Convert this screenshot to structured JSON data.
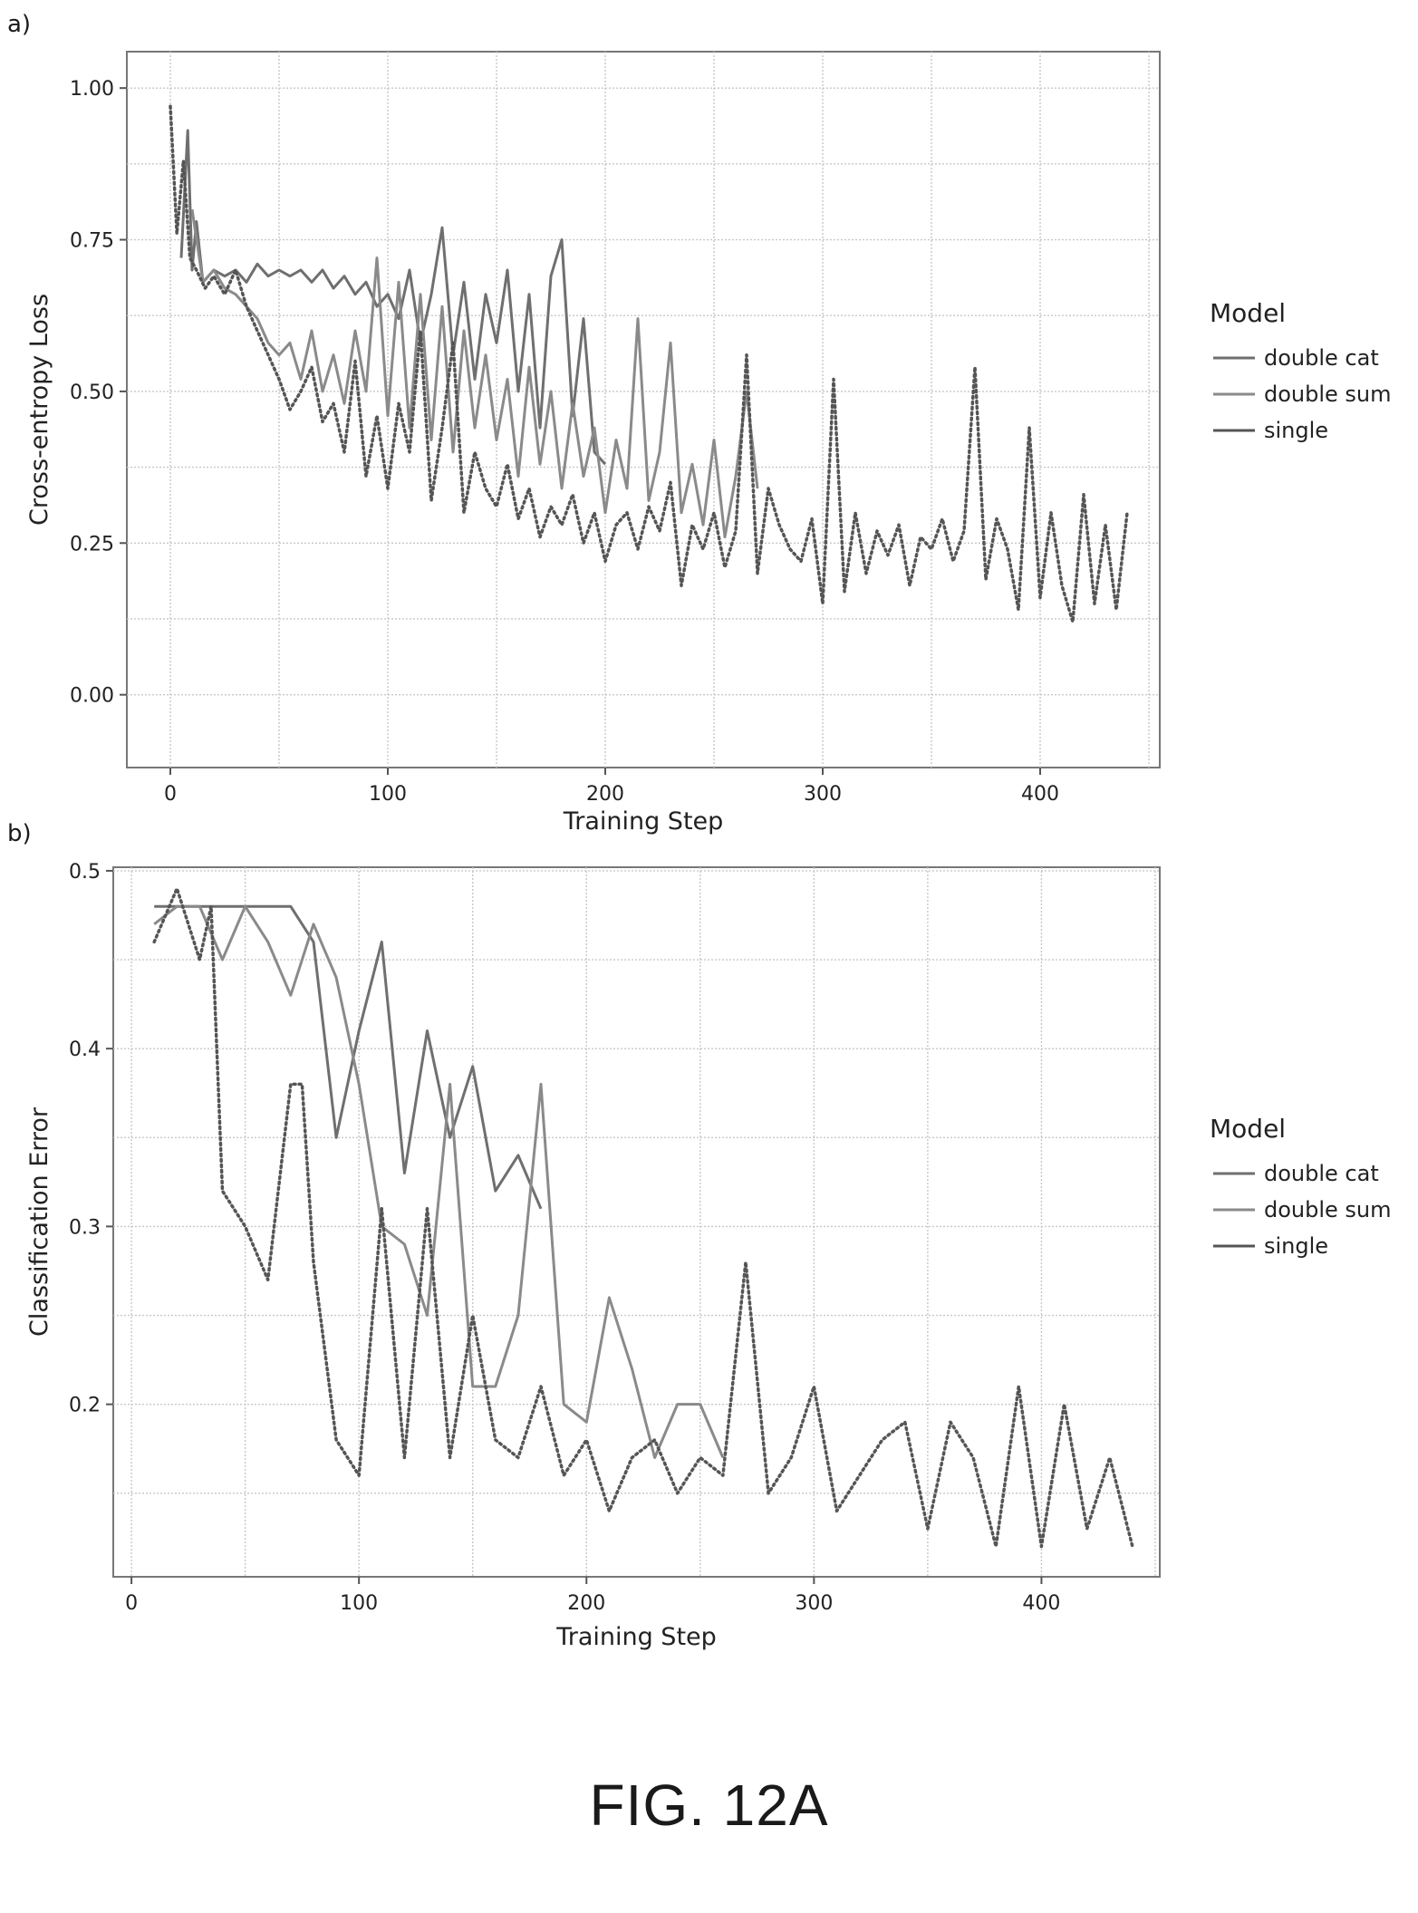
{
  "panels": {
    "a": "a)",
    "b": "b)"
  },
  "figure_caption": "FIG. 12A",
  "series_colors": {
    "double cat": "#6f6f6f",
    "double sum": "#8a8a8a",
    "single": "#555555"
  },
  "chart_data": [
    {
      "type": "line",
      "xlabel": "Training Step",
      "ylabel": "Cross-entropy Loss",
      "xlim": [
        -20,
        455
      ],
      "ylim": [
        -0.12,
        1.06
      ],
      "xticks": [
        0,
        100,
        200,
        300,
        400
      ],
      "xtick_labels": [
        "0",
        "100",
        "200",
        "300",
        "400"
      ],
      "yticks": [
        0.0,
        0.25,
        0.5,
        0.75,
        1.0
      ],
      "ytick_labels": [
        "0.00",
        "0.25",
        "0.50",
        "0.75",
        "1.00"
      ],
      "grid": true,
      "legend": {
        "title": "Model",
        "placement": "right"
      },
      "series": [
        {
          "name": "double cat",
          "style": "solid",
          "x": [
            5,
            8,
            10,
            12,
            15,
            20,
            25,
            30,
            35,
            40,
            45,
            50,
            55,
            60,
            65,
            70,
            75,
            80,
            85,
            90,
            95,
            100,
            105,
            110,
            115,
            120,
            125,
            130,
            135,
            140,
            145,
            150,
            155,
            160,
            165,
            170,
            175,
            180,
            185,
            190,
            195,
            200
          ],
          "y": [
            0.72,
            0.93,
            0.7,
            0.78,
            0.68,
            0.7,
            0.69,
            0.7,
            0.68,
            0.71,
            0.69,
            0.7,
            0.69,
            0.7,
            0.68,
            0.7,
            0.67,
            0.69,
            0.66,
            0.68,
            0.64,
            0.66,
            0.62,
            0.7,
            0.58,
            0.66,
            0.77,
            0.56,
            0.68,
            0.52,
            0.66,
            0.58,
            0.7,
            0.5,
            0.66,
            0.44,
            0.69,
            0.75,
            0.46,
            0.62,
            0.4,
            0.38
          ]
        },
        {
          "name": "double sum",
          "style": "solid",
          "x": [
            10,
            15,
            20,
            25,
            30,
            35,
            40,
            45,
            50,
            55,
            60,
            65,
            70,
            75,
            80,
            85,
            90,
            95,
            100,
            105,
            110,
            115,
            120,
            125,
            130,
            135,
            140,
            145,
            150,
            155,
            160,
            165,
            170,
            175,
            180,
            185,
            190,
            195,
            200,
            205,
            210,
            215,
            220,
            225,
            230,
            235,
            240,
            245,
            250,
            255,
            260,
            265,
            270
          ],
          "y": [
            0.8,
            0.68,
            0.7,
            0.67,
            0.66,
            0.64,
            0.62,
            0.58,
            0.56,
            0.58,
            0.52,
            0.6,
            0.5,
            0.56,
            0.48,
            0.6,
            0.5,
            0.72,
            0.46,
            0.68,
            0.44,
            0.66,
            0.42,
            0.64,
            0.4,
            0.6,
            0.44,
            0.56,
            0.42,
            0.52,
            0.36,
            0.54,
            0.38,
            0.5,
            0.34,
            0.48,
            0.36,
            0.44,
            0.3,
            0.42,
            0.34,
            0.62,
            0.32,
            0.4,
            0.58,
            0.3,
            0.38,
            0.28,
            0.42,
            0.26,
            0.36,
            0.5,
            0.34
          ]
        },
        {
          "name": "single",
          "style": "dotted",
          "x": [
            0,
            3,
            6,
            9,
            12,
            16,
            20,
            25,
            30,
            35,
            40,
            45,
            50,
            55,
            60,
            65,
            70,
            75,
            80,
            85,
            90,
            95,
            100,
            105,
            110,
            115,
            120,
            125,
            130,
            135,
            140,
            145,
            150,
            155,
            160,
            165,
            170,
            175,
            180,
            185,
            190,
            195,
            200,
            205,
            210,
            215,
            220,
            225,
            230,
            235,
            240,
            245,
            250,
            255,
            260,
            265,
            270,
            275,
            280,
            285,
            290,
            295,
            300,
            305,
            310,
            315,
            320,
            325,
            330,
            335,
            340,
            345,
            350,
            355,
            360,
            365,
            370,
            375,
            380,
            385,
            390,
            395,
            400,
            405,
            410,
            415,
            420,
            425,
            430,
            435,
            440
          ],
          "y": [
            0.97,
            0.76,
            0.88,
            0.72,
            0.7,
            0.67,
            0.69,
            0.66,
            0.7,
            0.64,
            0.6,
            0.56,
            0.52,
            0.47,
            0.5,
            0.54,
            0.45,
            0.48,
            0.4,
            0.55,
            0.36,
            0.46,
            0.34,
            0.48,
            0.4,
            0.6,
            0.32,
            0.44,
            0.58,
            0.3,
            0.4,
            0.34,
            0.31,
            0.38,
            0.29,
            0.34,
            0.26,
            0.31,
            0.28,
            0.33,
            0.25,
            0.3,
            0.22,
            0.28,
            0.3,
            0.24,
            0.31,
            0.27,
            0.35,
            0.18,
            0.28,
            0.24,
            0.3,
            0.21,
            0.27,
            0.56,
            0.2,
            0.34,
            0.28,
            0.24,
            0.22,
            0.29,
            0.15,
            0.52,
            0.17,
            0.3,
            0.2,
            0.27,
            0.23,
            0.28,
            0.18,
            0.26,
            0.24,
            0.29,
            0.22,
            0.27,
            0.54,
            0.19,
            0.29,
            0.24,
            0.14,
            0.44,
            0.16,
            0.3,
            0.18,
            0.12,
            0.33,
            0.15,
            0.28,
            0.14,
            0.3
          ]
        }
      ]
    },
    {
      "type": "line",
      "xlabel": "Training Step",
      "ylabel": "Classification Error",
      "xlim": [
        -8,
        452
      ],
      "ylim": [
        0.103,
        0.502
      ],
      "xticks": [
        0,
        100,
        200,
        300,
        400
      ],
      "xtick_labels": [
        "0",
        "100",
        "200",
        "300",
        "400"
      ],
      "yticks": [
        0.2,
        0.3,
        0.4,
        0.5
      ],
      "ytick_labels": [
        "0.2",
        "0.3",
        "0.4",
        "0.5"
      ],
      "grid": true,
      "legend": {
        "title": "Model",
        "placement": "right"
      },
      "series": [
        {
          "name": "double cat",
          "style": "solid",
          "x": [
            10,
            20,
            30,
            40,
            50,
            60,
            70,
            80,
            90,
            100,
            110,
            120,
            130,
            140,
            150,
            160,
            170,
            180
          ],
          "y": [
            0.48,
            0.48,
            0.48,
            0.48,
            0.48,
            0.48,
            0.48,
            0.46,
            0.35,
            0.41,
            0.46,
            0.33,
            0.41,
            0.35,
            0.39,
            0.32,
            0.34,
            0.31
          ]
        },
        {
          "name": "double sum",
          "style": "solid",
          "x": [
            10,
            20,
            30,
            40,
            50,
            60,
            70,
            80,
            90,
            100,
            110,
            120,
            130,
            140,
            150,
            160,
            170,
            180,
            190,
            200,
            210,
            220,
            230,
            240,
            250,
            260
          ],
          "y": [
            0.47,
            0.48,
            0.48,
            0.45,
            0.48,
            0.46,
            0.43,
            0.47,
            0.44,
            0.38,
            0.3,
            0.29,
            0.25,
            0.38,
            0.21,
            0.21,
            0.25,
            0.38,
            0.2,
            0.19,
            0.26,
            0.22,
            0.17,
            0.2,
            0.2,
            0.17
          ]
        },
        {
          "name": "single",
          "style": "dotted",
          "x": [
            10,
            20,
            30,
            35,
            40,
            50,
            60,
            70,
            75,
            80,
            90,
            100,
            110,
            120,
            130,
            140,
            150,
            160,
            170,
            180,
            190,
            200,
            210,
            220,
            230,
            240,
            250,
            260,
            270,
            280,
            290,
            300,
            310,
            320,
            330,
            340,
            350,
            360,
            370,
            380,
            390,
            400,
            410,
            420,
            430,
            440
          ],
          "y": [
            0.46,
            0.49,
            0.45,
            0.48,
            0.32,
            0.3,
            0.27,
            0.38,
            0.38,
            0.28,
            0.18,
            0.16,
            0.31,
            0.17,
            0.31,
            0.17,
            0.25,
            0.18,
            0.17,
            0.21,
            0.16,
            0.18,
            0.14,
            0.17,
            0.18,
            0.15,
            0.17,
            0.16,
            0.28,
            0.15,
            0.17,
            0.21,
            0.14,
            0.16,
            0.18,
            0.19,
            0.13,
            0.19,
            0.17,
            0.12,
            0.21,
            0.12,
            0.2,
            0.13,
            0.17,
            0.12
          ]
        }
      ]
    }
  ]
}
